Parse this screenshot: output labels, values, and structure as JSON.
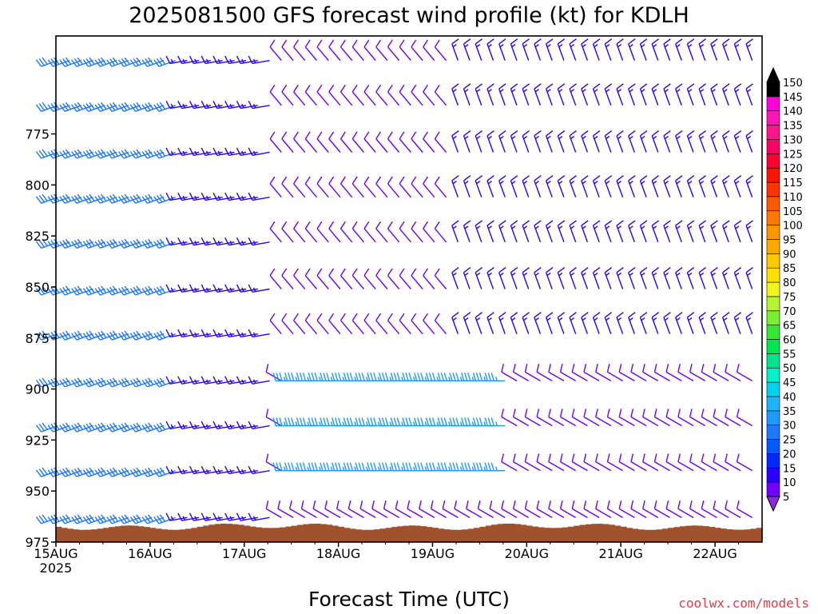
{
  "chart_data": {
    "type": "wind_barb_time_height",
    "title": "2025081500 GFS forecast wind profile (kt) for KDLH",
    "xlabel": "Forecast Time (UTC)",
    "ylabel": "",
    "credit": "coolwx.com/models",
    "x_ticks": [
      {
        "label": "15AUG",
        "sublabel": "2025",
        "day": 0
      },
      {
        "label": "16AUG",
        "sublabel": "",
        "day": 1
      },
      {
        "label": "17AUG",
        "sublabel": "",
        "day": 2
      },
      {
        "label": "18AUG",
        "sublabel": "",
        "day": 3
      },
      {
        "label": "19AUG",
        "sublabel": "",
        "day": 4
      },
      {
        "label": "20AUG",
        "sublabel": "",
        "day": 5
      },
      {
        "label": "21AUG",
        "sublabel": "",
        "day": 6
      },
      {
        "label": "22AUG",
        "sublabel": "",
        "day": 7
      }
    ],
    "xlim_days": [
      0,
      7.5
    ],
    "y_ticks": [
      775,
      800,
      825,
      850,
      875,
      900,
      925,
      950,
      975
    ],
    "ylim_hpa": [
      975,
      727
    ],
    "y_inverted": true,
    "levels_hpa": [
      739,
      761,
      784,
      806,
      828,
      851,
      873,
      896,
      918,
      940,
      963
    ],
    "terrain_color": "#a0522d",
    "colorbar": {
      "ticks": [
        5,
        10,
        15,
        20,
        25,
        30,
        35,
        40,
        45,
        50,
        55,
        60,
        65,
        70,
        75,
        80,
        85,
        90,
        95,
        100,
        105,
        110,
        115,
        120,
        125,
        130,
        135,
        140,
        145,
        150
      ],
      "colors": [
        "#8a2be2",
        "#6f00ff",
        "#2a00ff",
        "#0028ff",
        "#005aff",
        "#1e78ff",
        "#1e9bff",
        "#1eb4ff",
        "#00d2f0",
        "#00f0c8",
        "#00e48c",
        "#00e650",
        "#32e632",
        "#78f032",
        "#b4f532",
        "#f0f51e",
        "#ffe100",
        "#ffc800",
        "#ffaa00",
        "#ff9600",
        "#ff7800",
        "#ff5a00",
        "#ff3200",
        "#ff1400",
        "#ff0032",
        "#ff0064",
        "#ff148c",
        "#ff14b4",
        "#ff00dc",
        "#000000"
      ]
    },
    "speed_bands": [
      {
        "day_from": 0.0,
        "day_to": 1.3,
        "hpa_from": 727,
        "hpa_to": 975,
        "speed_kt": 30,
        "direction_from_deg": 250
      },
      {
        "day_from": 1.3,
        "day_to": 2.3,
        "hpa_from": 727,
        "hpa_to": 975,
        "speed_kt": 15,
        "direction_from_deg": 260
      },
      {
        "day_from": 2.3,
        "day_to": 4.2,
        "hpa_from": 727,
        "hpa_to": 880,
        "speed_kt": 10,
        "direction_from_deg": 320
      },
      {
        "day_from": 2.5,
        "day_to": 4.8,
        "hpa_from": 880,
        "hpa_to": 955,
        "speed_kt": 35,
        "direction_from_deg": 270
      },
      {
        "day_from": 4.2,
        "day_to": 7.5,
        "hpa_from": 727,
        "hpa_to": 880,
        "speed_kt": 15,
        "direction_from_deg": 340
      },
      {
        "day_from": 4.8,
        "day_to": 7.5,
        "hpa_from": 880,
        "hpa_to": 975,
        "speed_kt": 10,
        "direction_from_deg": 300
      }
    ]
  }
}
